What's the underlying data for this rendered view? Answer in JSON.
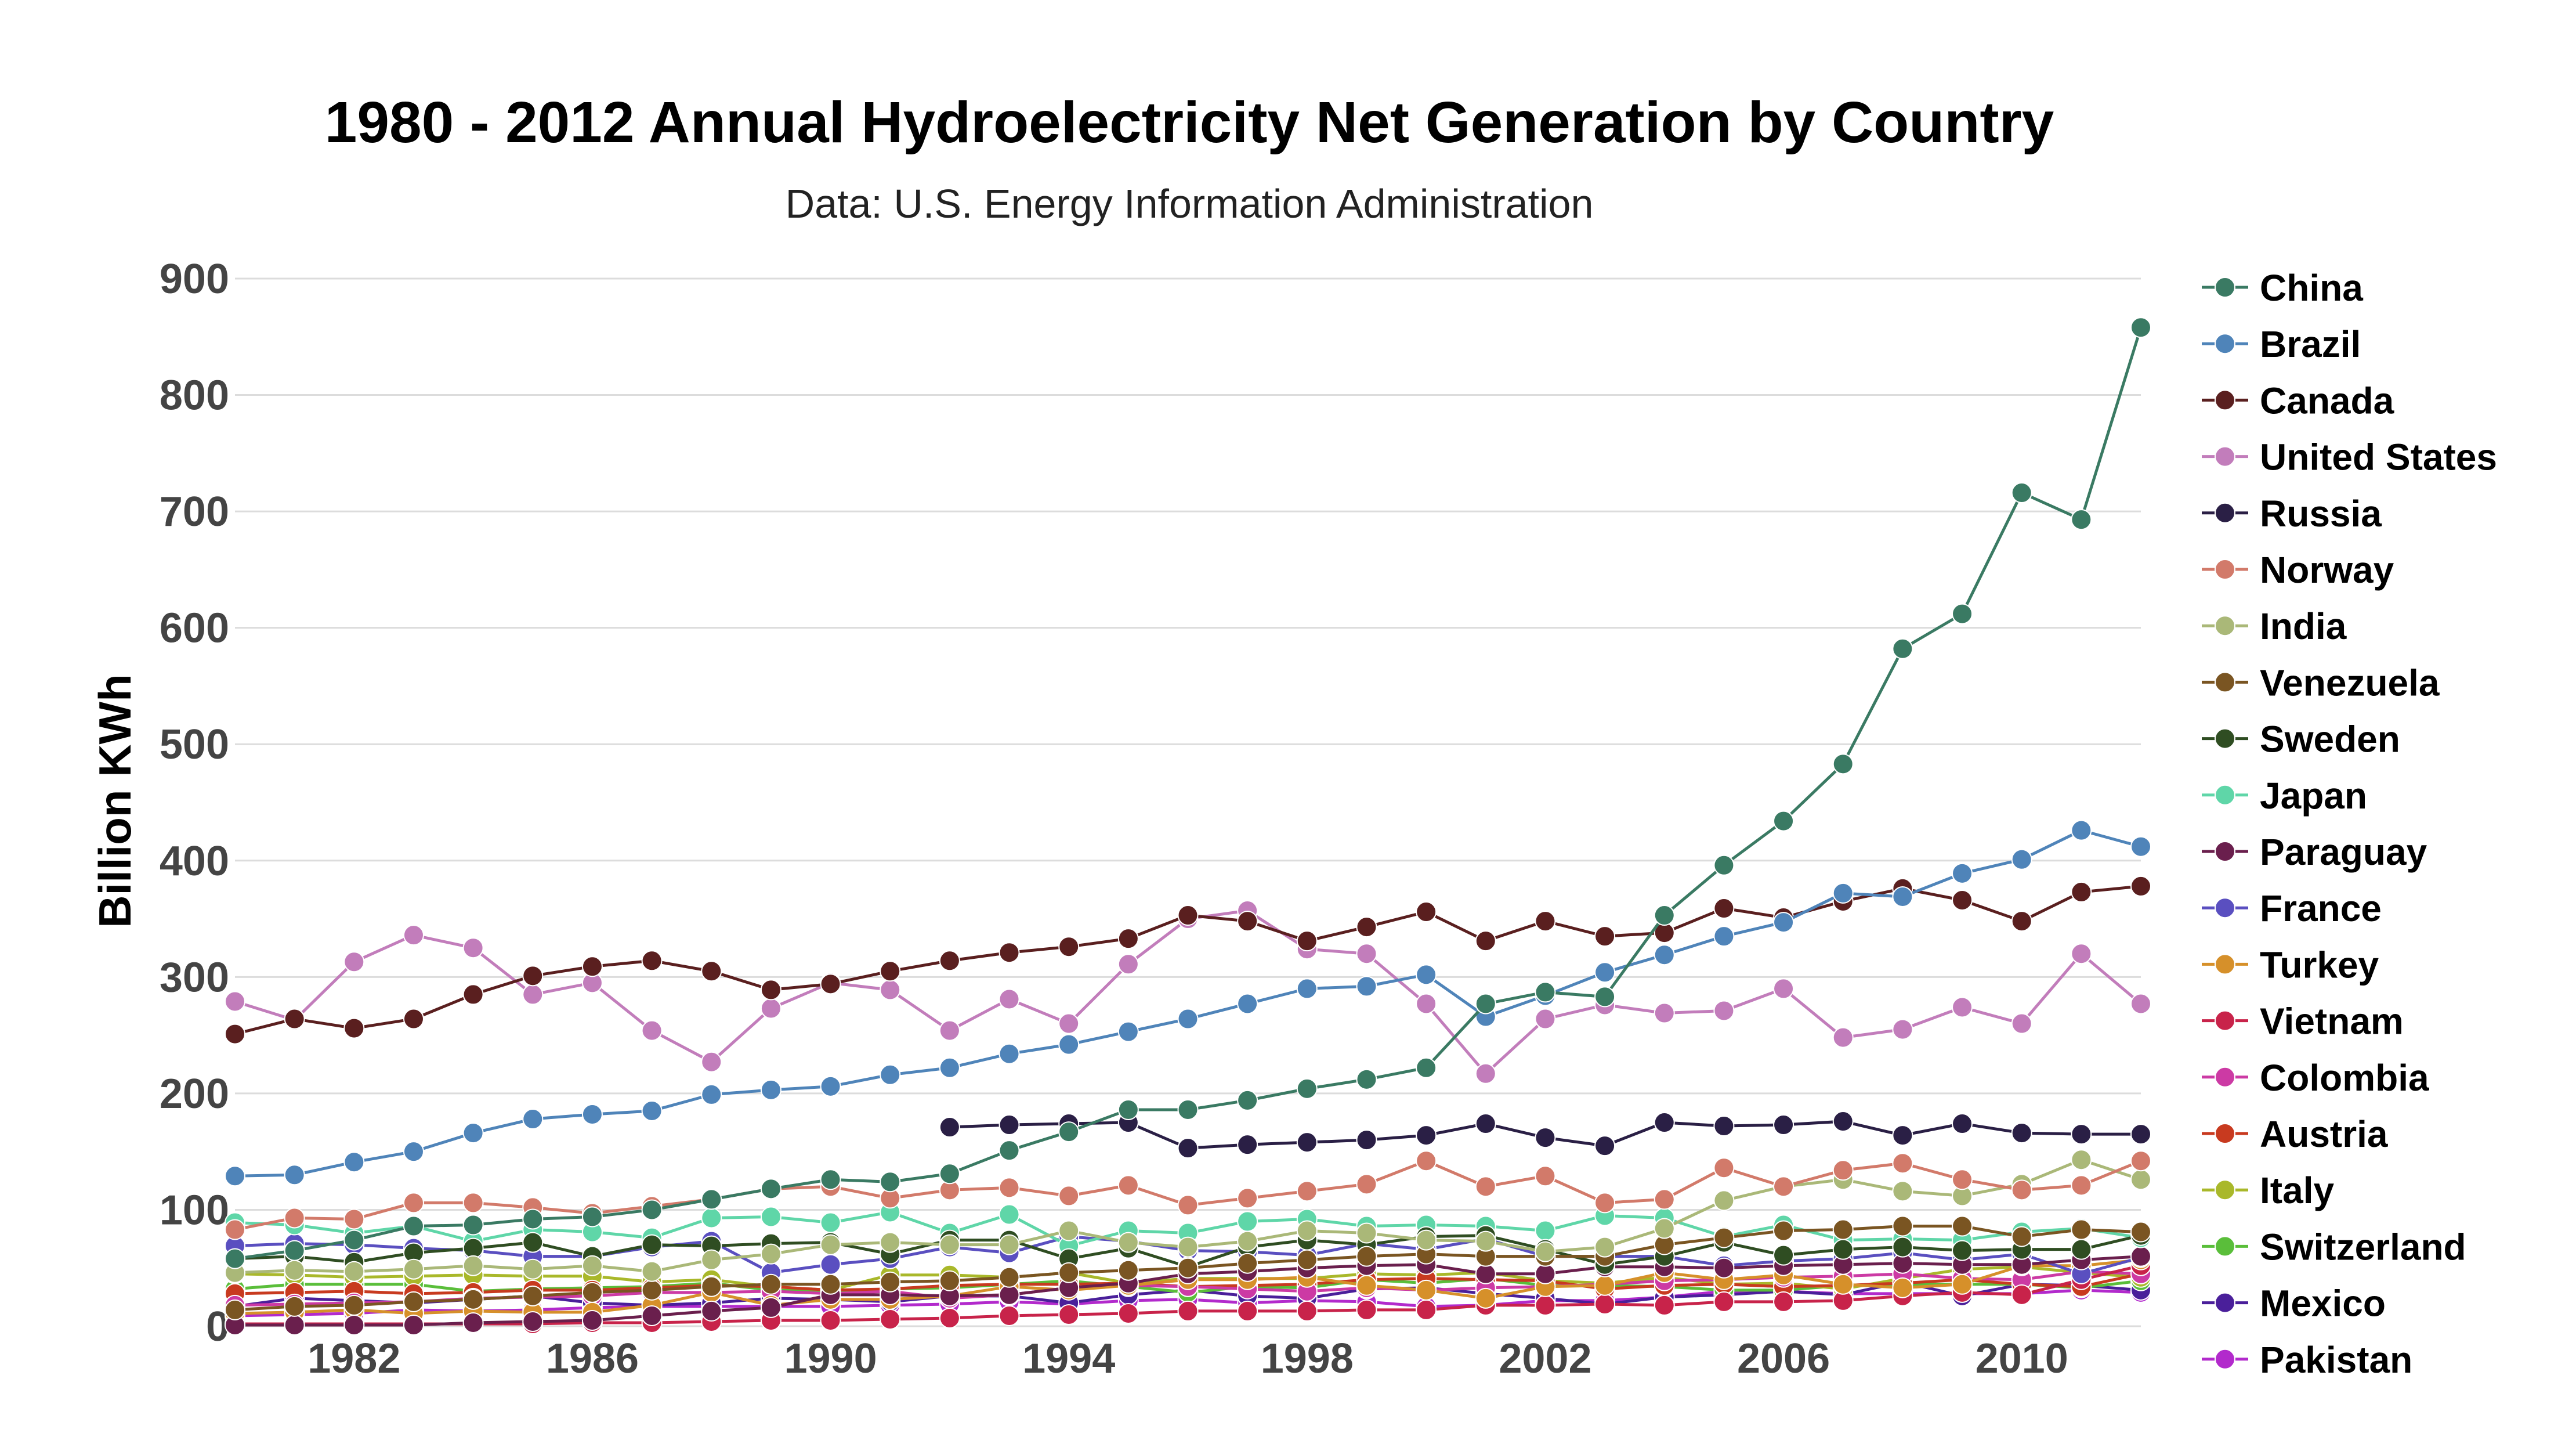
{
  "chart_data": {
    "type": "line",
    "title": "1980 - 2012 Annual Hydroelectricity Net Generation by Country",
    "subtitle": "Data: U.S. Energy Information Administration",
    "ylabel": "Billion KWh",
    "xlabel": "",
    "xlim": [
      1980,
      2012
    ],
    "ylim": [
      0,
      900
    ],
    "x_ticks": [
      1982,
      1986,
      1990,
      1994,
      1998,
      2002,
      2006,
      2010
    ],
    "y_ticks": [
      0,
      100,
      200,
      300,
      400,
      500,
      600,
      700,
      800,
      900
    ],
    "grid": true,
    "legend_position": "right",
    "x": [
      1980,
      1981,
      1982,
      1983,
      1984,
      1985,
      1986,
      1987,
      1988,
      1989,
      1990,
      1991,
      1992,
      1993,
      1994,
      1995,
      1996,
      1997,
      1998,
      1999,
      2000,
      2001,
      2002,
      2003,
      2004,
      2005,
      2006,
      2007,
      2008,
      2009,
      2010,
      2011,
      2012
    ],
    "series": [
      {
        "name": "China",
        "color": "#3a7a63",
        "values": [
          58,
          65,
          74,
          86,
          87,
          92,
          94,
          100,
          109,
          118,
          126,
          124,
          131,
          151,
          167,
          186,
          186,
          194,
          204,
          212,
          222,
          277,
          287,
          283,
          353,
          396,
          434,
          483,
          582,
          612,
          716,
          693,
          858
        ]
      },
      {
        "name": "Brazil",
        "color": "#4f84b9",
        "values": [
          129,
          130,
          141,
          150,
          166,
          178,
          182,
          185,
          199,
          203,
          206,
          216,
          222,
          234,
          242,
          253,
          264,
          277,
          290,
          292,
          302,
          266,
          284,
          304,
          319,
          335,
          347,
          372,
          369,
          389,
          401,
          426,
          412
        ]
      },
      {
        "name": "Canada",
        "color": "#5a1f1f",
        "values": [
          251,
          264,
          256,
          264,
          285,
          301,
          309,
          314,
          305,
          289,
          294,
          305,
          314,
          321,
          326,
          333,
          353,
          348,
          331,
          343,
          356,
          331,
          348,
          335,
          338,
          359,
          351,
          365,
          376,
          366,
          348,
          373,
          378
        ]
      },
      {
        "name": "United States",
        "color": "#c27dbb",
        "values": [
          279,
          263,
          313,
          336,
          325,
          285,
          295,
          254,
          227,
          273,
          295,
          289,
          254,
          281,
          260,
          311,
          350,
          357,
          324,
          320,
          277,
          217,
          264,
          276,
          269,
          271,
          290,
          248,
          255,
          274,
          260,
          320,
          277
        ]
      },
      {
        "name": "Russia",
        "color": "#2a1f45",
        "values": [
          null,
          null,
          null,
          null,
          null,
          null,
          null,
          null,
          null,
          null,
          null,
          null,
          171,
          173,
          174,
          175,
          153,
          156,
          158,
          160,
          164,
          174,
          162,
          155,
          175,
          172,
          173,
          176,
          164,
          174,
          166,
          165,
          165
        ]
      },
      {
        "name": "Norway",
        "color": "#d27a6a",
        "values": [
          83,
          93,
          92,
          106,
          106,
          102,
          97,
          103,
          109,
          118,
          120,
          110,
          117,
          119,
          112,
          121,
          104,
          110,
          116,
          122,
          142,
          120,
          129,
          106,
          109,
          136,
          120,
          134,
          140,
          126,
          117,
          121,
          142
        ]
      },
      {
        "name": "India",
        "color": "#aab878",
        "values": [
          46,
          48,
          47,
          49,
          52,
          49,
          52,
          47,
          57,
          62,
          70,
          72,
          70,
          70,
          82,
          72,
          68,
          73,
          82,
          80,
          74,
          73,
          64,
          68,
          84,
          108,
          120,
          126,
          116,
          112,
          122,
          143,
          126
        ]
      },
      {
        "name": "Venezuela",
        "color": "#7a5522",
        "values": [
          14,
          17,
          18,
          21,
          23,
          26,
          29,
          31,
          34,
          36,
          36,
          38,
          39,
          42,
          46,
          48,
          50,
          54,
          57,
          60,
          62,
          60,
          60,
          60,
          70,
          76,
          82,
          83,
          86,
          86,
          77,
          83,
          81
        ]
      },
      {
        "name": "Sweden",
        "color": "#2f4d22",
        "values": [
          58,
          60,
          55,
          63,
          67,
          72,
          60,
          70,
          69,
          71,
          72,
          62,
          74,
          74,
          58,
          67,
          51,
          68,
          74,
          70,
          77,
          78,
          66,
          53,
          60,
          72,
          61,
          66,
          68,
          65,
          66,
          66,
          78
        ]
      },
      {
        "name": "Japan",
        "color": "#5fd6a8",
        "values": [
          89,
          87,
          80,
          86,
          73,
          83,
          81,
          76,
          93,
          94,
          89,
          98,
          80,
          96,
          69,
          82,
          80,
          90,
          92,
          86,
          87,
          86,
          82,
          95,
          93,
          77,
          87,
          74,
          75,
          74,
          81,
          84,
          76
        ]
      },
      {
        "name": "Paraguay",
        "color": "#6a1f4d",
        "values": [
          1,
          1,
          1,
          1,
          3,
          4,
          5,
          9,
          13,
          16,
          27,
          27,
          26,
          27,
          33,
          37,
          45,
          47,
          50,
          52,
          53,
          45,
          45,
          51,
          51,
          50,
          52,
          53,
          54,
          53,
          53,
          57,
          60
        ]
      },
      {
        "name": "France",
        "color": "#5a4fc0",
        "values": [
          69,
          71,
          70,
          67,
          65,
          60,
          60,
          68,
          73,
          46,
          53,
          58,
          68,
          63,
          77,
          73,
          65,
          64,
          61,
          71,
          66,
          75,
          60,
          60,
          60,
          52,
          56,
          58,
          63,
          57,
          62,
          45,
          59
        ]
      },
      {
        "name": "Turkey",
        "color": "#d6902a",
        "values": [
          11,
          12,
          14,
          11,
          13,
          12,
          12,
          18,
          29,
          18,
          23,
          23,
          26,
          34,
          31,
          35,
          40,
          40,
          42,
          35,
          31,
          24,
          34,
          35,
          46,
          40,
          44,
          36,
          33,
          36,
          52,
          52,
          57
        ]
      },
      {
        "name": "Vietnam",
        "color": "#c8234a",
        "values": [
          2,
          2,
          2,
          2,
          2,
          2,
          3,
          3,
          4,
          5,
          5,
          6,
          7,
          9,
          10,
          11,
          13,
          13,
          13,
          14,
          14,
          18,
          18,
          19,
          18,
          21,
          21,
          22,
          26,
          29,
          27,
          40,
          52
        ]
      },
      {
        "name": "Colombia",
        "color": "#cc3aa4",
        "values": [
          18,
          19,
          20,
          21,
          24,
          25,
          26,
          29,
          29,
          30,
          28,
          30,
          24,
          27,
          33,
          35,
          34,
          32,
          30,
          33,
          31,
          33,
          34,
          36,
          39,
          40,
          42,
          43,
          45,
          41,
          40,
          47,
          45
        ]
      },
      {
        "name": "Austria",
        "color": "#c83a1f",
        "values": [
          28,
          29,
          30,
          28,
          29,
          31,
          31,
          33,
          35,
          34,
          31,
          32,
          35,
          36,
          36,
          37,
          34,
          35,
          36,
          40,
          41,
          40,
          39,
          32,
          35,
          36,
          34,
          35,
          37,
          40,
          36,
          34,
          45
        ]
      },
      {
        "name": "Italy",
        "color": "#a9b82a",
        "values": [
          45,
          44,
          42,
          43,
          44,
          43,
          43,
          38,
          40,
          34,
          31,
          44,
          44,
          42,
          46,
          37,
          41,
          41,
          41,
          45,
          44,
          46,
          39,
          37,
          42,
          36,
          37,
          32,
          41,
          49,
          51,
          46,
          42
        ]
      },
      {
        "name": "Switzerland",
        "color": "#5abe3a",
        "values": [
          32,
          36,
          36,
          36,
          30,
          32,
          33,
          34,
          37,
          31,
          30,
          32,
          33,
          36,
          39,
          34,
          29,
          34,
          33,
          40,
          37,
          41,
          35,
          35,
          34,
          31,
          31,
          35,
          36,
          36,
          36,
          33,
          39
        ]
      },
      {
        "name": "Mexico",
        "color": "#4a1f9a",
        "values": [
          17,
          24,
          22,
          20,
          23,
          26,
          20,
          18,
          20,
          24,
          23,
          21,
          26,
          26,
          20,
          27,
          31,
          26,
          24,
          32,
          33,
          28,
          24,
          19,
          25,
          27,
          30,
          27,
          38,
          26,
          36,
          35,
          31
        ]
      },
      {
        "name": "Pakistan",
        "color": "#b22acc",
        "values": [
          9,
          10,
          11,
          14,
          13,
          14,
          16,
          17,
          17,
          17,
          17,
          18,
          19,
          21,
          19,
          22,
          23,
          20,
          22,
          21,
          17,
          18,
          22,
          22,
          25,
          30,
          30,
          28,
          28,
          28,
          28,
          31,
          29
        ]
      }
    ]
  }
}
